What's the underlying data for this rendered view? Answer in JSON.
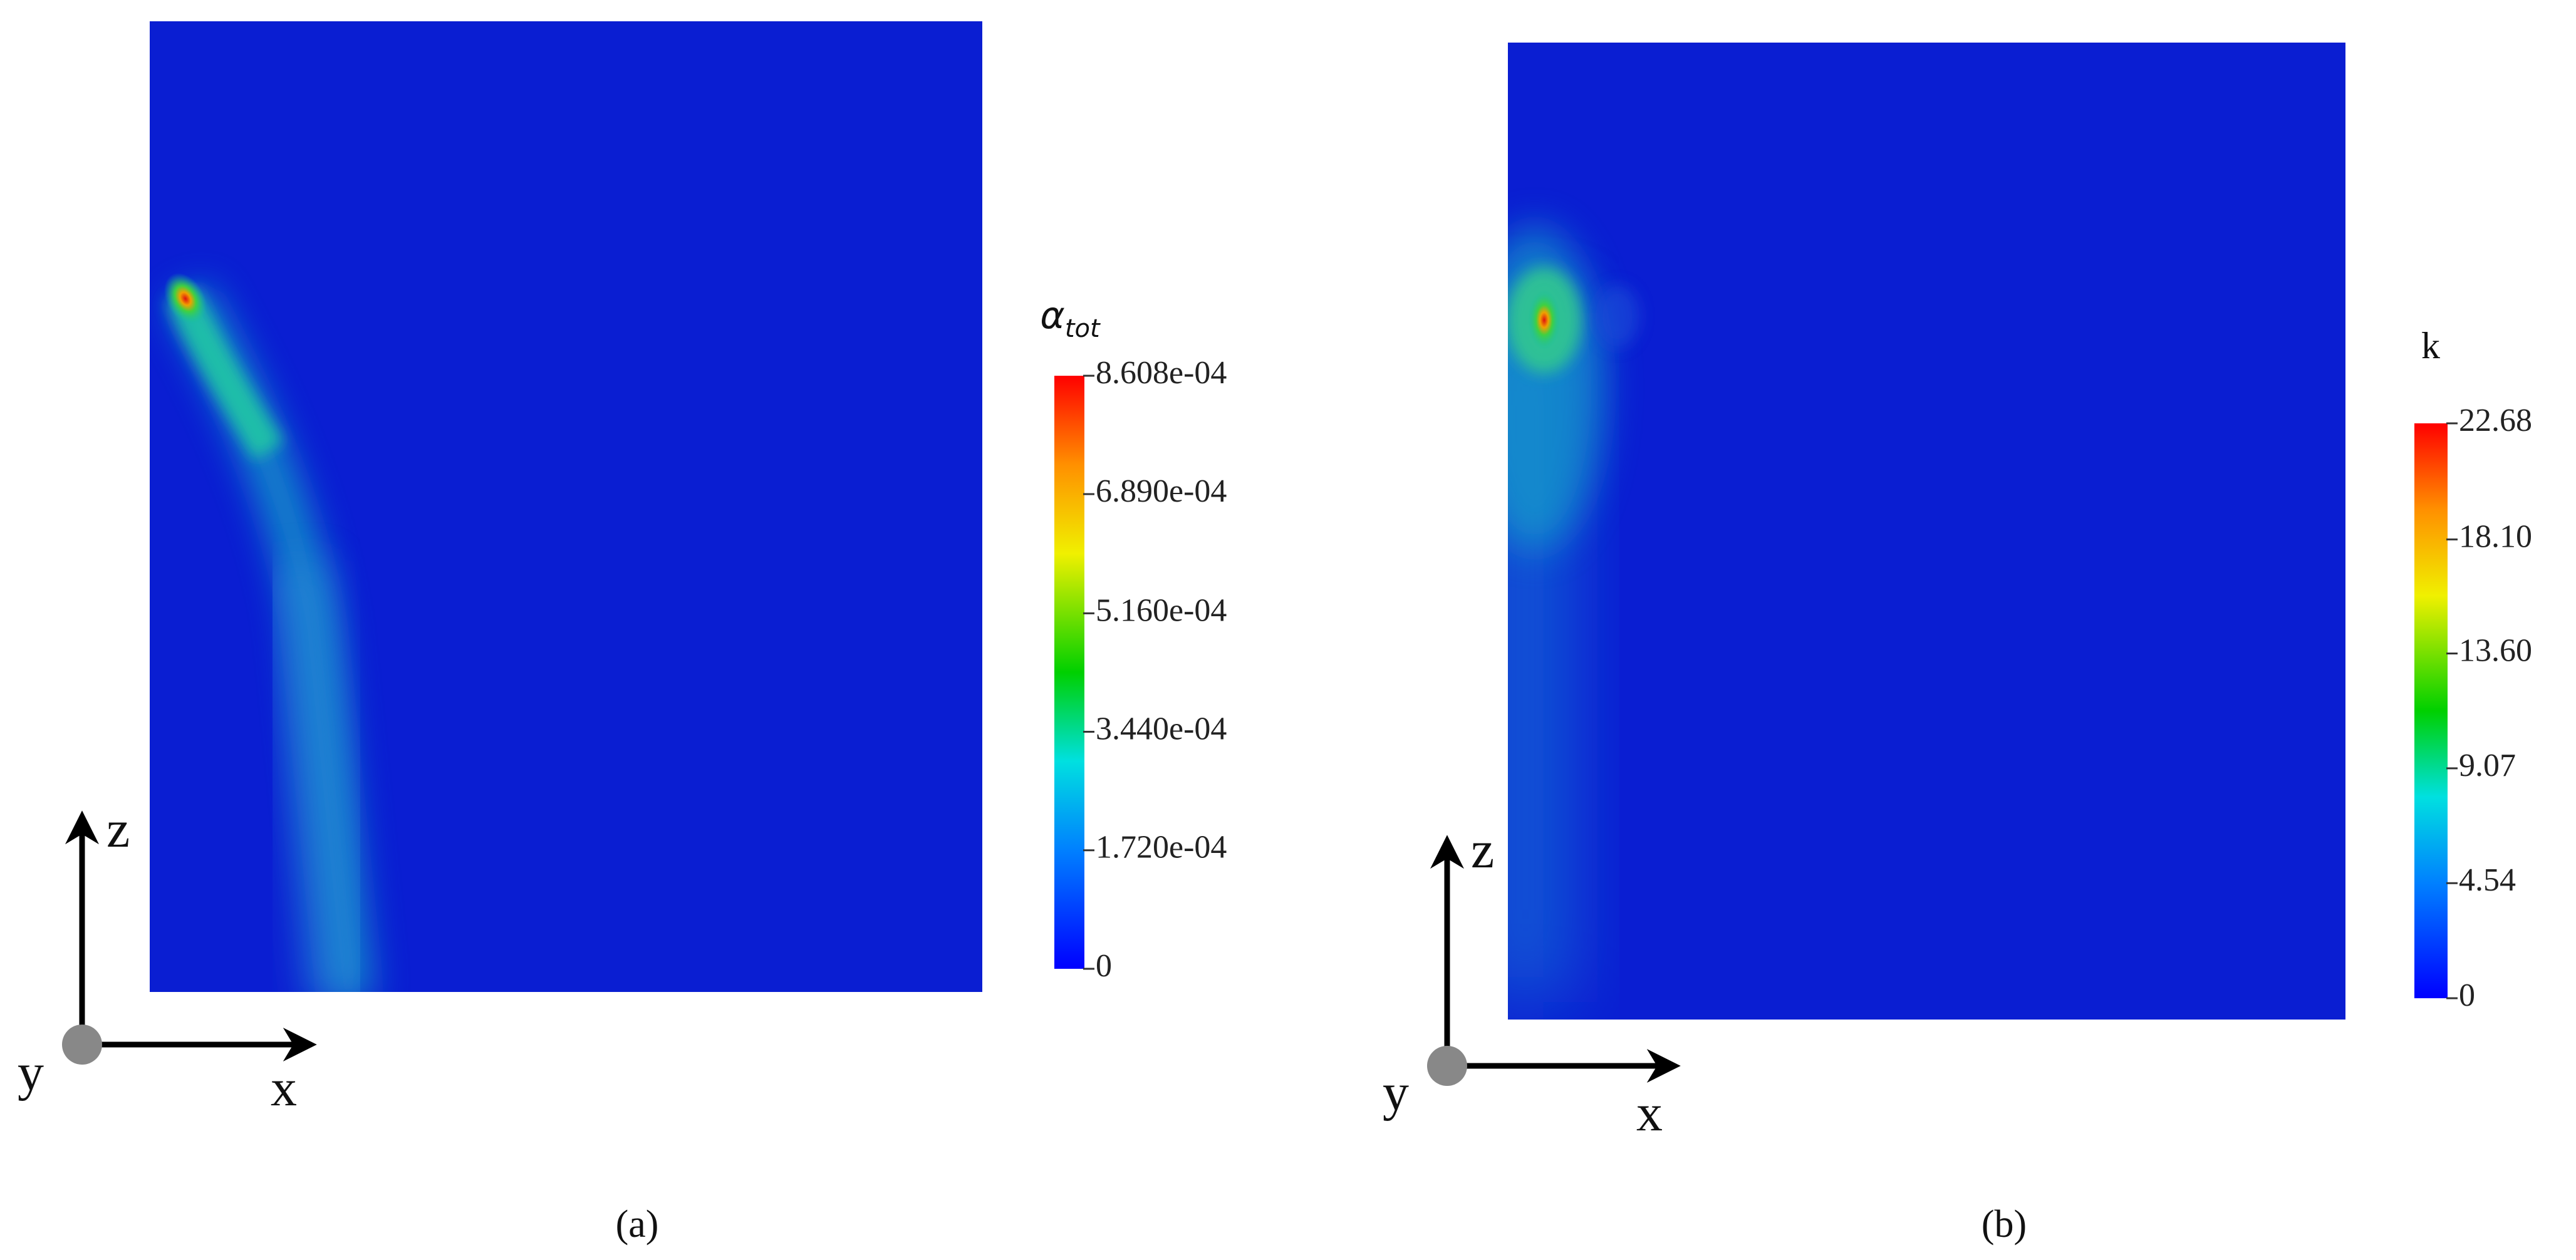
{
  "panels": [
    {
      "label": "(a)",
      "colorbar": {
        "title": {
          "symbol": "α",
          "subscript": "tot"
        },
        "range": [
          0,
          0.0008608
        ],
        "ticks": [
          0,
          {
            "value": 0.000172,
            "label": "1.720e-04"
          },
          {
            "value": 0.000344,
            "label": "3.440e-04"
          },
          {
            "value": 0.000516,
            "label": "5.160e-04"
          },
          {
            "value": 0.000689,
            "label": "6.890e-04"
          },
          {
            "value": 0.0008608,
            "label": "8.608e-04"
          }
        ]
      },
      "axes": {
        "z": "z",
        "y": "y",
        "x": "x"
      }
    },
    {
      "label": "(b)",
      "colorbar": {
        "title": {
          "symbol": "k"
        },
        "range": [
          0,
          22.68
        ],
        "ticks": [
          0,
          4.54,
          9.07,
          {
            "value": 13.6,
            "label": "13.60"
          },
          {
            "value": 18.1,
            "label": "18.10"
          },
          22.68
        ]
      },
      "axes": {
        "z": "z",
        "y": "y",
        "x": "x"
      }
    }
  ]
}
